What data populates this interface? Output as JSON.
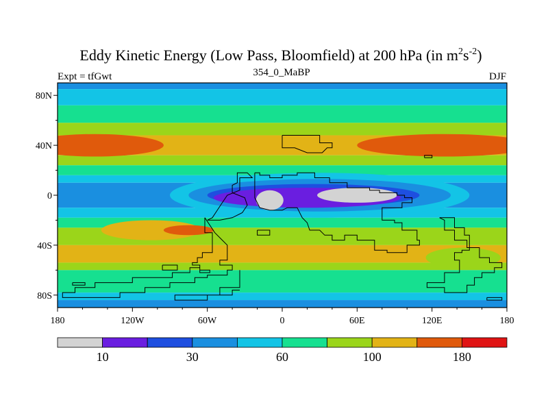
{
  "chart_data": {
    "type": "heatmap",
    "title_main": "Eddy Kinetic Energy (Low Pass, Bloomfield) at 200 hPa (in m",
    "title_sup1": "2",
    "title_mid": "s",
    "title_sup2": "-2",
    "title_end": ")",
    "subtitle_left": "Expt = tfGwt",
    "subtitle_center": "354_0_MaBP",
    "subtitle_right": "DJF",
    "x_ticks": [
      "180",
      "120W",
      "60W",
      "0",
      "60E",
      "120E",
      "180"
    ],
    "x_tick_values": [
      -180,
      -120,
      -60,
      0,
      60,
      120,
      180
    ],
    "y_ticks": [
      "80N",
      "40N",
      "0",
      "40S",
      "80S"
    ],
    "y_tick_values": [
      80,
      40,
      0,
      -40,
      -80
    ],
    "xlim": [
      -180,
      180
    ],
    "ylim": [
      -90,
      90
    ],
    "colorbar": {
      "colors": [
        "#d3d3d3",
        "#6a1ee0",
        "#1e4fe0",
        "#1a8fe0",
        "#13c4e6",
        "#16e090",
        "#9bd51a",
        "#e2b316",
        "#e05a0c",
        "#e01414"
      ],
      "labels": [
        "10",
        "30",
        "60",
        "100",
        "180"
      ],
      "label_boundaries": [
        1,
        3,
        5,
        7,
        9
      ]
    },
    "lat_bands": [
      {
        "lat_top": 90,
        "lat_bottom": 85,
        "level": 3
      },
      {
        "lat_top": 85,
        "lat_bottom": 72,
        "level": 4
      },
      {
        "lat_top": 72,
        "lat_bottom": 58,
        "level": 5
      },
      {
        "lat_top": 58,
        "lat_bottom": 48,
        "level": 6
      },
      {
        "lat_top": 48,
        "lat_bottom": 32,
        "level": 7
      },
      {
        "lat_top": 32,
        "lat_bottom": 24,
        "level": 6
      },
      {
        "lat_top": 24,
        "lat_bottom": 16,
        "level": 5
      },
      {
        "lat_top": 16,
        "lat_bottom": 10,
        "level": 4
      },
      {
        "lat_top": 10,
        "lat_bottom": -10,
        "level": 3
      },
      {
        "lat_top": -10,
        "lat_bottom": -18,
        "level": 4
      },
      {
        "lat_top": -18,
        "lat_bottom": -26,
        "level": 5
      },
      {
        "lat_top": -26,
        "lat_bottom": -40,
        "level": 6
      },
      {
        "lat_top": -40,
        "lat_bottom": -54,
        "level": 7
      },
      {
        "lat_top": -54,
        "lat_bottom": -60,
        "level": 6
      },
      {
        "lat_top": -60,
        "lat_bottom": -78,
        "level": 5
      },
      {
        "lat_top": -78,
        "lat_bottom": -84,
        "level": 4
      },
      {
        "lat_top": -84,
        "lat_bottom": -90,
        "level": 3
      }
    ],
    "features": [
      {
        "shape": "ellipse",
        "lon": -150,
        "lat": 40,
        "dlon": 55,
        "dlat": 9,
        "level": 8
      },
      {
        "shape": "ellipse",
        "lon": 130,
        "lat": 40,
        "dlon": 70,
        "dlat": 9,
        "level": 8
      },
      {
        "shape": "ellipse",
        "lon": -105,
        "lat": -28,
        "dlon": 40,
        "dlat": 8,
        "level": 7
      },
      {
        "shape": "ellipse",
        "lon": -75,
        "lat": -28,
        "dlon": 20,
        "dlat": 4,
        "level": 8
      },
      {
        "shape": "ellipse",
        "lon": 145,
        "lat": -50,
        "dlon": 30,
        "dlat": 8,
        "level": 6
      },
      {
        "shape": "ellipse",
        "lon": 30,
        "lat": 0,
        "dlon": 120,
        "dlat": 18,
        "level": 4
      },
      {
        "shape": "ellipse",
        "lon": 30,
        "lat": 0,
        "dlon": 105,
        "dlat": 13,
        "level": 3
      },
      {
        "shape": "ellipse",
        "lon": 25,
        "lat": 0,
        "dlon": 85,
        "dlat": 9,
        "level": 2
      },
      {
        "shape": "ellipse",
        "lon": 20,
        "lat": -2,
        "dlon": 75,
        "dlat": 8,
        "level": 1
      },
      {
        "shape": "ellipse",
        "lon": -10,
        "lat": -4,
        "dlon": 11,
        "dlat": 8,
        "level": 0
      },
      {
        "shape": "ellipse",
        "lon": 60,
        "lat": 0,
        "dlon": 32,
        "dlat": 6,
        "level": 0
      }
    ],
    "coastlines": [
      [
        [
          0,
          48
        ],
        [
          30,
          48
        ],
        [
          30,
          42
        ],
        [
          40,
          42
        ],
        [
          40,
          38
        ],
        [
          36,
          38
        ],
        [
          32,
          34
        ],
        [
          20,
          34
        ],
        [
          10,
          38
        ],
        [
          0,
          38
        ],
        [
          0,
          48
        ]
      ],
      [
        [
          -22,
          18
        ],
        [
          -18,
          18
        ],
        [
          -18,
          16
        ],
        [
          -10,
          16
        ],
        [
          -10,
          14
        ],
        [
          0,
          14
        ],
        [
          0,
          16
        ],
        [
          12,
          16
        ],
        [
          12,
          18
        ],
        [
          26,
          18
        ],
        [
          26,
          14
        ],
        [
          38,
          14
        ],
        [
          38,
          10
        ],
        [
          52,
          10
        ],
        [
          52,
          6
        ],
        [
          70,
          6
        ],
        [
          70,
          4
        ],
        [
          78,
          4
        ],
        [
          78,
          2
        ],
        [
          92,
          2
        ],
        [
          92,
          0
        ],
        [
          98,
          0
        ],
        [
          98,
          -2
        ],
        [
          104,
          -2
        ],
        [
          104,
          -6
        ],
        [
          96,
          -6
        ],
        [
          96,
          -10
        ],
        [
          80,
          -10
        ],
        [
          80,
          -20
        ],
        [
          90,
          -20
        ],
        [
          90,
          -22
        ],
        [
          96,
          -22
        ],
        [
          96,
          -28
        ],
        [
          108,
          -28
        ],
        [
          108,
          -36
        ],
        [
          110,
          -36
        ],
        [
          110,
          -40
        ],
        [
          100,
          -40
        ],
        [
          100,
          -46
        ],
        [
          84,
          -46
        ],
        [
          84,
          -44
        ],
        [
          74,
          -44
        ],
        [
          74,
          -36
        ],
        [
          60,
          -36
        ],
        [
          60,
          -32
        ],
        [
          50,
          -32
        ],
        [
          50,
          -36
        ],
        [
          40,
          -36
        ],
        [
          40,
          -32
        ],
        [
          34,
          -32
        ],
        [
          30,
          -28
        ],
        [
          22,
          -28
        ],
        [
          20,
          -22
        ],
        [
          16,
          -18
        ],
        [
          12,
          -10
        ],
        [
          4,
          -10
        ],
        [
          0,
          -12
        ],
        [
          -10,
          -12
        ],
        [
          -18,
          -10
        ],
        [
          -22,
          -2
        ],
        [
          -22,
          18
        ]
      ],
      [
        [
          -60,
          -20
        ],
        [
          -50,
          -20
        ],
        [
          -40,
          -18
        ],
        [
          -32,
          -14
        ],
        [
          -28,
          -8
        ],
        [
          -30,
          -2
        ],
        [
          -40,
          2
        ],
        [
          -40,
          8
        ],
        [
          -36,
          10
        ],
        [
          -36,
          18
        ],
        [
          -28,
          18
        ],
        [
          -24,
          14
        ],
        [
          -34,
          14
        ],
        [
          -34,
          4
        ],
        [
          -44,
          0
        ],
        [
          -48,
          -6
        ],
        [
          -52,
          -12
        ],
        [
          -56,
          -18
        ],
        [
          -60,
          -20
        ]
      ],
      [
        [
          -62,
          -18
        ],
        [
          -62,
          -30
        ],
        [
          -56,
          -30
        ],
        [
          -56,
          -46
        ],
        [
          -64,
          -46
        ],
        [
          -64,
          -50
        ],
        [
          -68,
          -50
        ],
        [
          -68,
          -54
        ],
        [
          -72,
          -54
        ],
        [
          -72,
          -56
        ],
        [
          -66,
          -56
        ],
        [
          -66,
          -60
        ],
        [
          -58,
          -60
        ],
        [
          -58,
          -62
        ],
        [
          -66,
          -62
        ],
        [
          -66,
          -58
        ],
        [
          -74,
          -58
        ],
        [
          -74,
          -62
        ],
        [
          -88,
          -62
        ],
        [
          -88,
          -66
        ],
        [
          -120,
          -66
        ],
        [
          -120,
          -70
        ],
        [
          -150,
          -70
        ],
        [
          -150,
          -74
        ],
        [
          -166,
          -74
        ],
        [
          -166,
          -78
        ],
        [
          -176,
          -78
        ],
        [
          -176,
          -82
        ],
        [
          -130,
          -82
        ],
        [
          -130,
          -78
        ],
        [
          -110,
          -78
        ],
        [
          -110,
          -74
        ],
        [
          -90,
          -74
        ],
        [
          -90,
          -70
        ],
        [
          -70,
          -70
        ],
        [
          -70,
          -66
        ],
        [
          -60,
          -66
        ],
        [
          -60,
          -64
        ],
        [
          -44,
          -64
        ],
        [
          -44,
          -60
        ],
        [
          -40,
          -60
        ],
        [
          -40,
          -56
        ],
        [
          -50,
          -56
        ],
        [
          -50,
          -52
        ],
        [
          -44,
          -52
        ],
        [
          -44,
          -40
        ],
        [
          -48,
          -36
        ],
        [
          -54,
          -30
        ],
        [
          -58,
          -24
        ],
        [
          -62,
          -18
        ]
      ],
      [
        [
          -20,
          -28
        ],
        [
          -10,
          -28
        ],
        [
          -10,
          -32
        ],
        [
          -20,
          -32
        ],
        [
          -20,
          -28
        ]
      ],
      [
        [
          -96,
          -56
        ],
        [
          -84,
          -56
        ],
        [
          -84,
          -60
        ],
        [
          -96,
          -60
        ],
        [
          -96,
          -56
        ]
      ],
      [
        [
          -34,
          -60
        ],
        [
          -34,
          -74
        ],
        [
          -50,
          -74
        ],
        [
          -50,
          -80
        ],
        [
          -86,
          -80
        ],
        [
          -86,
          -84
        ],
        [
          -60,
          -84
        ],
        [
          -60,
          -80
        ],
        [
          -40,
          -80
        ],
        [
          -40,
          -76
        ],
        [
          -34,
          -76
        ]
      ],
      [
        [
          -168,
          -70
        ],
        [
          -158,
          -70
        ],
        [
          -158,
          -72
        ],
        [
          -168,
          -72
        ],
        [
          -168,
          -70
        ]
      ],
      [
        [
          126,
          -18
        ],
        [
          138,
          -18
        ],
        [
          138,
          -26
        ],
        [
          146,
          -26
        ],
        [
          146,
          -32
        ],
        [
          150,
          -32
        ],
        [
          150,
          -44
        ],
        [
          144,
          -44
        ],
        [
          144,
          -46
        ],
        [
          138,
          -46
        ],
        [
          138,
          -52
        ],
        [
          142,
          -52
        ],
        [
          142,
          -62
        ],
        [
          130,
          -62
        ],
        [
          130,
          -70
        ],
        [
          116,
          -70
        ],
        [
          116,
          -74
        ],
        [
          130,
          -74
        ],
        [
          130,
          -78
        ],
        [
          148,
          -78
        ],
        [
          148,
          -72
        ],
        [
          154,
          -72
        ],
        [
          154,
          -66
        ],
        [
          160,
          -66
        ],
        [
          160,
          -62
        ],
        [
          170,
          -62
        ],
        [
          170,
          -58
        ],
        [
          176,
          -58
        ],
        [
          176,
          -54
        ],
        [
          166,
          -54
        ],
        [
          166,
          -50
        ],
        [
          158,
          -50
        ],
        [
          158,
          -42
        ],
        [
          148,
          -42
        ],
        [
          148,
          -36
        ],
        [
          138,
          -36
        ],
        [
          138,
          -28
        ],
        [
          130,
          -28
        ],
        [
          130,
          -20
        ],
        [
          126,
          -18
        ]
      ],
      [
        [
          164,
          -82
        ],
        [
          176,
          -82
        ],
        [
          176,
          -84
        ],
        [
          164,
          -84
        ],
        [
          164,
          -82
        ]
      ],
      [
        [
          114,
          30
        ],
        [
          120,
          30
        ],
        [
          120,
          32
        ],
        [
          114,
          32
        ],
        [
          114,
          30
        ]
      ]
    ]
  }
}
